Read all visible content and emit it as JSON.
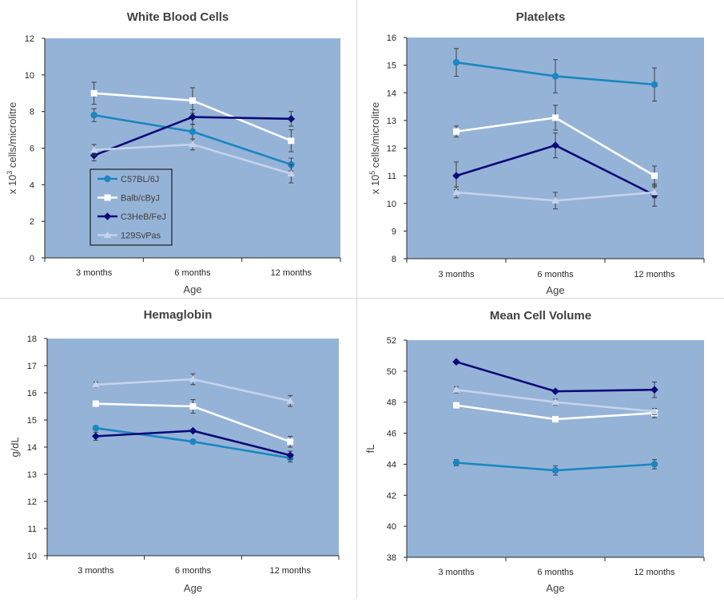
{
  "legend": {
    "entries": [
      "C57BL/6J",
      "Balb/cByJ",
      "C3HeB/FeJ",
      "129SvPas"
    ]
  },
  "colors": {
    "plot_bg": "#95b3d7",
    "C57BL/6J": "#1b86c1",
    "Balb/cByJ": "#ffffff",
    "C3HeB/FeJ": "#0a0a78",
    "129SvPas": "#c5d3ec"
  },
  "chart_data": [
    {
      "type": "line",
      "title": "White Blood Cells",
      "xlabel": "Age",
      "ylabel_prefix": "x 10",
      "ylabel_sup": "3",
      "ylabel_suffix": " cells/microlitre",
      "categories": [
        "3 months",
        "6 months",
        "12 months"
      ],
      "ylim": [
        0,
        12
      ],
      "yticks": [
        0,
        2,
        4,
        6,
        8,
        10,
        12
      ],
      "legend": "inside-lower-left",
      "grid": false,
      "series": [
        {
          "name": "C57BL/6J",
          "marker": "circle",
          "values": [
            7.8,
            6.9,
            5.1
          ],
          "errors": [
            0.35,
            0.4,
            0.35
          ]
        },
        {
          "name": "Balb/cByJ",
          "marker": "square",
          "values": [
            9.0,
            8.6,
            6.4
          ],
          "errors": [
            0.6,
            0.7,
            0.6
          ]
        },
        {
          "name": "C3HeB/FeJ",
          "marker": "diamond",
          "values": [
            5.6,
            7.7,
            7.6
          ],
          "errors": [
            0.3,
            0.4,
            0.4
          ]
        },
        {
          "name": "129SvPas",
          "marker": "triangle",
          "values": [
            5.9,
            6.2,
            4.6
          ],
          "errors": [
            0.3,
            0.3,
            0.5
          ]
        }
      ]
    },
    {
      "type": "line",
      "title": "Platelets",
      "xlabel": "Age",
      "ylabel_prefix": "x 10",
      "ylabel_sup": "5",
      "ylabel_suffix": " cells/microlitre",
      "categories": [
        "3 months",
        "6 months",
        "12 months"
      ],
      "ylim": [
        8,
        16
      ],
      "yticks": [
        8,
        9,
        10,
        11,
        12,
        13,
        14,
        15,
        16
      ],
      "grid": false,
      "series": [
        {
          "name": "C57BL/6J",
          "marker": "circle",
          "values": [
            15.1,
            14.6,
            14.3
          ],
          "errors": [
            0.5,
            0.6,
            0.6
          ]
        },
        {
          "name": "Balb/cByJ",
          "marker": "square",
          "values": [
            12.6,
            13.1,
            11.0
          ],
          "errors": [
            0.2,
            0.45,
            0.35
          ]
        },
        {
          "name": "C3HeB/FeJ",
          "marker": "diamond",
          "values": [
            11.0,
            12.1,
            10.3
          ],
          "errors": [
            0.5,
            0.45,
            0.4
          ]
        },
        {
          "name": "129SvPas",
          "marker": "triangle",
          "values": [
            10.4,
            10.1,
            10.4
          ],
          "errors": [
            0.2,
            0.3,
            0.2
          ]
        }
      ]
    },
    {
      "type": "line",
      "title": "Hemaglobin",
      "xlabel": "Age",
      "ylabel_prefix": "g/dL",
      "ylabel_sup": "",
      "ylabel_suffix": "",
      "categories": [
        "3 months",
        "6 months",
        "12 months"
      ],
      "ylim": [
        10,
        18
      ],
      "yticks": [
        10,
        11,
        12,
        13,
        14,
        15,
        16,
        17,
        18
      ],
      "grid": false,
      "series": [
        {
          "name": "C57BL/6J",
          "marker": "circle",
          "values": [
            14.7,
            14.2,
            13.6
          ],
          "errors": [
            0.05,
            0.05,
            0.15
          ]
        },
        {
          "name": "Balb/cByJ",
          "marker": "square",
          "values": [
            15.6,
            15.5,
            14.2
          ],
          "errors": [
            0.05,
            0.25,
            0.2
          ]
        },
        {
          "name": "C3HeB/FeJ",
          "marker": "diamond",
          "values": [
            14.4,
            14.6,
            13.7
          ],
          "errors": [
            0.15,
            0.05,
            0.15
          ]
        },
        {
          "name": "129SvPas",
          "marker": "triangle",
          "values": [
            16.3,
            16.5,
            15.7
          ],
          "errors": [
            0.1,
            0.2,
            0.2
          ]
        }
      ]
    },
    {
      "type": "line",
      "title": "Mean Cell Volume",
      "xlabel": "Age",
      "ylabel_prefix": "fL",
      "ylabel_sup": "",
      "ylabel_suffix": "",
      "categories": [
        "3 months",
        "6 months",
        "12 months"
      ],
      "ylim": [
        38,
        52
      ],
      "yticks": [
        38,
        40,
        42,
        44,
        46,
        48,
        50,
        52
      ],
      "grid": false,
      "series": [
        {
          "name": "C57BL/6J",
          "marker": "circle",
          "values": [
            44.1,
            43.6,
            44.0
          ],
          "errors": [
            0.2,
            0.3,
            0.3
          ]
        },
        {
          "name": "Balb/cByJ",
          "marker": "square",
          "values": [
            47.8,
            46.9,
            47.3
          ],
          "errors": [
            0.1,
            0.1,
            0.3
          ]
        },
        {
          "name": "C3HeB/FeJ",
          "marker": "diamond",
          "values": [
            50.6,
            48.7,
            48.8
          ],
          "errors": [
            0.1,
            0.1,
            0.5
          ]
        },
        {
          "name": "129SvPas",
          "marker": "triangle",
          "values": [
            48.8,
            48.0,
            47.4
          ],
          "errors": [
            0.2,
            0.2,
            0.2
          ]
        }
      ]
    }
  ]
}
